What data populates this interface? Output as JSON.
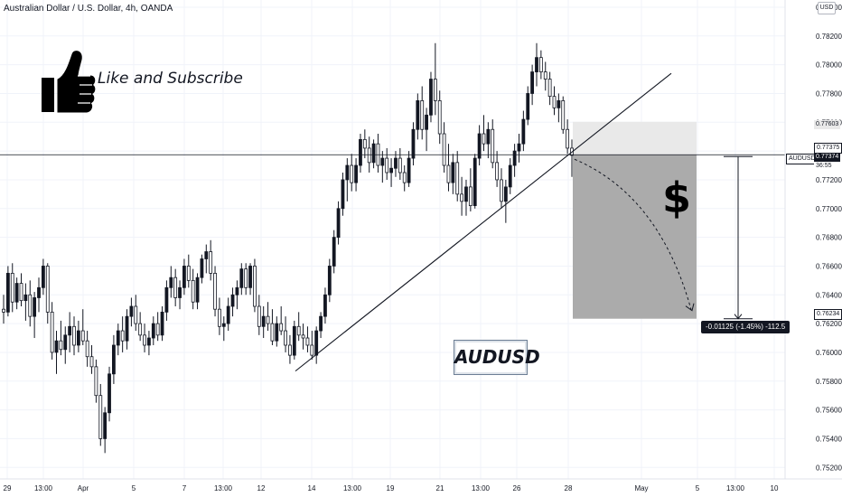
{
  "header": {
    "title": "Australian Dollar / U.S. Dollar, 4h, OANDA",
    "currency": "USD"
  },
  "overlay": {
    "like_text": "Like and Subscribe",
    "symbol_text": "AUDUSD",
    "dollar_text": "$"
  },
  "tags": {
    "target_top": "0.77603",
    "entry_a": "0.77375",
    "entry_b": "0.77374",
    "countdown": "36:55",
    "stop": "0.76234",
    "symbol": "AUDUSD",
    "measure": "-0.01125 (-1.45%) -112.5"
  },
  "colors": {
    "bull": "#131722",
    "bear": "#ffffff",
    "target_zone": "#e9e9e9",
    "stop_zone": "#ababab",
    "grid": "#f0f3fa"
  },
  "icons": {
    "thumbs": "thumbs-up-icon"
  },
  "chart_data": {
    "type": "candlestick",
    "timeframe": "4h",
    "ylim": [
      0.7512,
      0.7845
    ],
    "ytick_labels": [
      "0.78400",
      "0.78200",
      "0.78000",
      "0.77800",
      "0.77600",
      "0.77400",
      "0.77200",
      "0.77000",
      "0.76800",
      "0.76600",
      "0.76400",
      "0.76200",
      "0.76000",
      "0.75800",
      "0.75600",
      "0.75400",
      "0.75200"
    ],
    "yticks": [
      0.784,
      0.782,
      0.78,
      0.778,
      0.776,
      0.774,
      0.772,
      0.77,
      0.768,
      0.766,
      0.764,
      0.762,
      0.76,
      0.758,
      0.756,
      0.754,
      0.752
    ],
    "xtick_labels": [
      "29",
      "13:00",
      "Apr",
      "5",
      "7",
      "13:00",
      "12",
      "14",
      "13:00",
      "19",
      "21",
      "13:00",
      "26",
      "28",
      "May",
      "5",
      "13:00",
      "10"
    ],
    "price_line": 0.77374,
    "trendline": [
      [
        0.7587,
        "start"
      ],
      [
        0.7794,
        "end"
      ]
    ],
    "position": {
      "type": "short",
      "entry": 0.77374,
      "target": 0.77603,
      "stop": 0.76234
    },
    "ohlc": [
      [
        0.763,
        0.764,
        0.762,
        0.7628
      ],
      [
        0.7628,
        0.766,
        0.7625,
        0.7655
      ],
      [
        0.7655,
        0.7662,
        0.7628,
        0.7635
      ],
      [
        0.7635,
        0.7652,
        0.763,
        0.7648
      ],
      [
        0.7648,
        0.7655,
        0.7632,
        0.7636
      ],
      [
        0.7636,
        0.7648,
        0.7622,
        0.764
      ],
      [
        0.764,
        0.765,
        0.7618,
        0.7625
      ],
      [
        0.7625,
        0.7642,
        0.761,
        0.7638
      ],
      [
        0.7638,
        0.7652,
        0.7628,
        0.7645
      ],
      [
        0.7645,
        0.7665,
        0.764,
        0.766
      ],
      [
        0.766,
        0.7662,
        0.762,
        0.7628
      ],
      [
        0.7628,
        0.7635,
        0.7595,
        0.76
      ],
      [
        0.76,
        0.7615,
        0.7585,
        0.7608
      ],
      [
        0.7608,
        0.7622,
        0.7598,
        0.7602
      ],
      [
        0.7602,
        0.7618,
        0.7592,
        0.7612
      ],
      [
        0.7612,
        0.7628,
        0.76,
        0.7618
      ],
      [
        0.7618,
        0.7625,
        0.7598,
        0.7605
      ],
      [
        0.7605,
        0.7622,
        0.76,
        0.7615
      ],
      [
        0.7615,
        0.763,
        0.7605,
        0.7608
      ],
      [
        0.7608,
        0.7615,
        0.759,
        0.7597
      ],
      [
        0.7597,
        0.7605,
        0.7585,
        0.759
      ],
      [
        0.759,
        0.7595,
        0.7565,
        0.757
      ],
      [
        0.757,
        0.7578,
        0.7535,
        0.754
      ],
      [
        0.754,
        0.7562,
        0.753,
        0.7558
      ],
      [
        0.7558,
        0.759,
        0.7552,
        0.7585
      ],
      [
        0.7585,
        0.7612,
        0.7578,
        0.7605
      ],
      [
        0.7605,
        0.762,
        0.7598,
        0.7615
      ],
      [
        0.7615,
        0.7625,
        0.76,
        0.7608
      ],
      [
        0.7608,
        0.763,
        0.7602,
        0.7625
      ],
      [
        0.7625,
        0.7638,
        0.7618,
        0.7632
      ],
      [
        0.7632,
        0.764,
        0.7615,
        0.762
      ],
      [
        0.762,
        0.7628,
        0.7608,
        0.7612
      ],
      [
        0.7612,
        0.762,
        0.76,
        0.7605
      ],
      [
        0.7605,
        0.7615,
        0.7598,
        0.761
      ],
      [
        0.761,
        0.7625,
        0.7605,
        0.762
      ],
      [
        0.762,
        0.7628,
        0.7608,
        0.7612
      ],
      [
        0.7612,
        0.7632,
        0.7608,
        0.7628
      ],
      [
        0.7628,
        0.765,
        0.7622,
        0.7645
      ],
      [
        0.7645,
        0.766,
        0.7638,
        0.7652
      ],
      [
        0.7652,
        0.7658,
        0.7632,
        0.7638
      ],
      [
        0.7638,
        0.765,
        0.763,
        0.7645
      ],
      [
        0.7645,
        0.7665,
        0.764,
        0.766
      ],
      [
        0.766,
        0.7668,
        0.7645,
        0.765
      ],
      [
        0.765,
        0.7658,
        0.763,
        0.7635
      ],
      [
        0.7635,
        0.7655,
        0.763,
        0.7652
      ],
      [
        0.7652,
        0.7668,
        0.7648,
        0.7665
      ],
      [
        0.7665,
        0.7675,
        0.7655,
        0.767
      ],
      [
        0.767,
        0.7678,
        0.765,
        0.7655
      ],
      [
        0.7655,
        0.766,
        0.7625,
        0.763
      ],
      [
        0.763,
        0.7638,
        0.7612,
        0.7618
      ],
      [
        0.7618,
        0.7625,
        0.7608,
        0.762
      ],
      [
        0.762,
        0.7638,
        0.7615,
        0.7632
      ],
      [
        0.7632,
        0.7645,
        0.7625,
        0.764
      ],
      [
        0.764,
        0.765,
        0.763,
        0.7645
      ],
      [
        0.7645,
        0.7662,
        0.764,
        0.7658
      ],
      [
        0.7658,
        0.7662,
        0.764,
        0.7645
      ],
      [
        0.7645,
        0.7662,
        0.764,
        0.766
      ],
      [
        0.766,
        0.7665,
        0.7628,
        0.7632
      ],
      [
        0.7632,
        0.764,
        0.7612,
        0.7618
      ],
      [
        0.7618,
        0.7632,
        0.761,
        0.7625
      ],
      [
        0.7625,
        0.7635,
        0.7615,
        0.762
      ],
      [
        0.762,
        0.763,
        0.7605,
        0.7608
      ],
      [
        0.7608,
        0.7625,
        0.7604,
        0.762
      ],
      [
        0.762,
        0.7632,
        0.7612,
        0.7615
      ],
      [
        0.7615,
        0.7625,
        0.76,
        0.7605
      ],
      [
        0.7605,
        0.7612,
        0.7592,
        0.7598
      ],
      [
        0.7598,
        0.7622,
        0.7595,
        0.7618
      ],
      [
        0.7618,
        0.7628,
        0.7608,
        0.7612
      ],
      [
        0.7612,
        0.762,
        0.7602,
        0.761
      ],
      [
        0.761,
        0.7618,
        0.76,
        0.7605
      ],
      [
        0.7605,
        0.7615,
        0.7595,
        0.7598
      ],
      [
        0.7598,
        0.7618,
        0.7592,
        0.7615
      ],
      [
        0.7615,
        0.7628,
        0.761,
        0.7625
      ],
      [
        0.7625,
        0.7645,
        0.762,
        0.764
      ],
      [
        0.764,
        0.7665,
        0.7635,
        0.766
      ],
      [
        0.766,
        0.7685,
        0.7655,
        0.768
      ],
      [
        0.768,
        0.7705,
        0.7675,
        0.77
      ],
      [
        0.77,
        0.7725,
        0.7695,
        0.772
      ],
      [
        0.772,
        0.7735,
        0.7705,
        0.773
      ],
      [
        0.773,
        0.7738,
        0.7712,
        0.7718
      ],
      [
        0.7718,
        0.7735,
        0.7712,
        0.773
      ],
      [
        0.773,
        0.7752,
        0.7725,
        0.7748
      ],
      [
        0.7748,
        0.7755,
        0.7735,
        0.7742
      ],
      [
        0.7742,
        0.775,
        0.7725,
        0.7732
      ],
      [
        0.7732,
        0.7748,
        0.7728,
        0.7745
      ],
      [
        0.7745,
        0.7752,
        0.7725,
        0.773
      ],
      [
        0.773,
        0.774,
        0.7718,
        0.7735
      ],
      [
        0.7735,
        0.7742,
        0.772,
        0.7725
      ],
      [
        0.7725,
        0.7735,
        0.7715,
        0.7728
      ],
      [
        0.7728,
        0.774,
        0.7722,
        0.7735
      ],
      [
        0.7735,
        0.7742,
        0.772,
        0.7725
      ],
      [
        0.7725,
        0.773,
        0.7712,
        0.7718
      ],
      [
        0.7718,
        0.774,
        0.7715,
        0.7735
      ],
      [
        0.7735,
        0.776,
        0.773,
        0.7755
      ],
      [
        0.7755,
        0.778,
        0.7748,
        0.7775
      ],
      [
        0.7775,
        0.7785,
        0.7748,
        0.7755
      ],
      [
        0.7755,
        0.777,
        0.774,
        0.7765
      ],
      [
        0.7765,
        0.7795,
        0.776,
        0.779
      ],
      [
        0.779,
        0.7815,
        0.7765,
        0.7775
      ],
      [
        0.7775,
        0.7782,
        0.7745,
        0.7752
      ],
      [
        0.7752,
        0.776,
        0.7725,
        0.773
      ],
      [
        0.773,
        0.7745,
        0.7712,
        0.7718
      ],
      [
        0.7718,
        0.7738,
        0.771,
        0.7732
      ],
      [
        0.7732,
        0.774,
        0.7705,
        0.771
      ],
      [
        0.771,
        0.7722,
        0.7695,
        0.7705
      ],
      [
        0.7705,
        0.772,
        0.7695,
        0.7715
      ],
      [
        0.7715,
        0.7728,
        0.7698,
        0.7702
      ],
      [
        0.7702,
        0.7738,
        0.77,
        0.7735
      ],
      [
        0.7735,
        0.7758,
        0.773,
        0.7752
      ],
      [
        0.7752,
        0.7765,
        0.774,
        0.7745
      ],
      [
        0.7745,
        0.776,
        0.7735,
        0.7755
      ],
      [
        0.7755,
        0.7762,
        0.7728,
        0.7732
      ],
      [
        0.7732,
        0.774,
        0.7715,
        0.772
      ],
      [
        0.772,
        0.7728,
        0.77,
        0.7705
      ],
      [
        0.7705,
        0.772,
        0.769,
        0.7715
      ],
      [
        0.7715,
        0.7735,
        0.771,
        0.773
      ],
      [
        0.773,
        0.7745,
        0.7722,
        0.774
      ],
      [
        0.774,
        0.7752,
        0.7732,
        0.7745
      ],
      [
        0.7745,
        0.7768,
        0.774,
        0.7762
      ],
      [
        0.7762,
        0.7785,
        0.7758,
        0.778
      ],
      [
        0.778,
        0.78,
        0.7772,
        0.7795
      ],
      [
        0.7795,
        0.7815,
        0.7785,
        0.7805
      ],
      [
        0.7805,
        0.781,
        0.779,
        0.7795
      ],
      [
        0.7795,
        0.7802,
        0.7782,
        0.779
      ],
      [
        0.779,
        0.7795,
        0.7772,
        0.7778
      ],
      [
        0.7778,
        0.7785,
        0.7765,
        0.777
      ],
      [
        0.777,
        0.778,
        0.776,
        0.7775
      ],
      [
        0.7775,
        0.7778,
        0.7752,
        0.7755
      ],
      [
        0.7755,
        0.7762,
        0.7738,
        0.7742
      ],
      [
        0.7742,
        0.7748,
        0.7722,
        0.7737
      ]
    ]
  }
}
